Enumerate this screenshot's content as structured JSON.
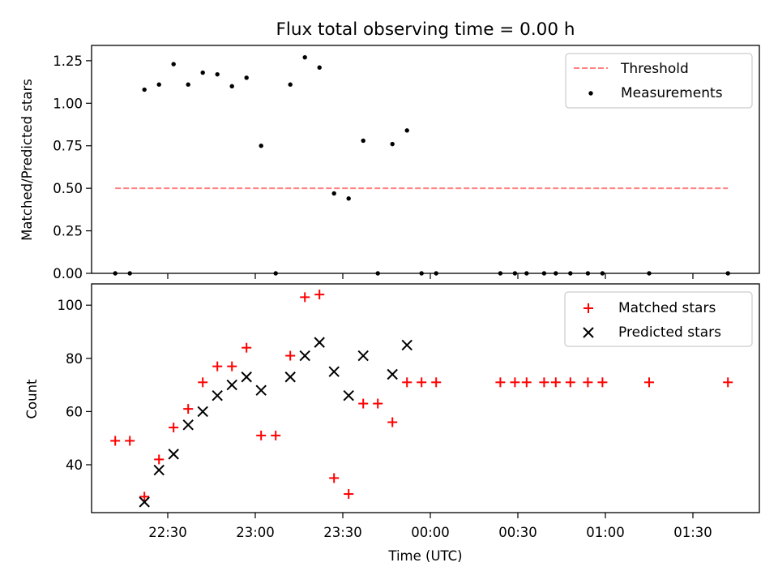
{
  "chart_data": [
    {
      "type": "scatter",
      "title": "Flux total observing time = 0.00 h",
      "xlabel": "",
      "ylabel": "Matched/Predicted stars",
      "ylim": [
        0,
        1.34
      ],
      "yticks": [
        "0.00",
        "0.25",
        "0.50",
        "0.75",
        "1.00",
        "1.25"
      ],
      "grid": false,
      "legend_position": "top-right",
      "threshold": {
        "name": "Threshold",
        "value": 0.5,
        "x_start": "22:12",
        "x_end": "01:42",
        "color": "#ff7f7f"
      },
      "series": [
        {
          "name": "Measurements",
          "color": "#000000",
          "points": [
            [
              "22:12",
              0.0
            ],
            [
              "22:17",
              0.0
            ],
            [
              "22:22",
              1.08
            ],
            [
              "22:27",
              1.11
            ],
            [
              "22:32",
              1.23
            ],
            [
              "22:37",
              1.11
            ],
            [
              "22:42",
              1.18
            ],
            [
              "22:47",
              1.17
            ],
            [
              "22:52",
              1.1
            ],
            [
              "22:57",
              1.15
            ],
            [
              "23:02",
              0.75
            ],
            [
              "23:07",
              0.0
            ],
            [
              "23:12",
              1.11
            ],
            [
              "23:17",
              1.27
            ],
            [
              "23:22",
              1.21
            ],
            [
              "23:27",
              0.47
            ],
            [
              "23:32",
              0.44
            ],
            [
              "23:37",
              0.78
            ],
            [
              "23:42",
              0.0
            ],
            [
              "23:47",
              0.76
            ],
            [
              "23:52",
              0.84
            ],
            [
              "23:57",
              0.0
            ],
            [
              "00:02",
              0.0
            ],
            [
              "00:24",
              0.0
            ],
            [
              "00:29",
              0.0
            ],
            [
              "00:33",
              0.0
            ],
            [
              "00:39",
              0.0
            ],
            [
              "00:43",
              0.0
            ],
            [
              "00:48",
              0.0
            ],
            [
              "00:54",
              0.0
            ],
            [
              "00:59",
              0.0
            ],
            [
              "01:15",
              0.0
            ],
            [
              "01:42",
              0.0
            ]
          ]
        }
      ]
    },
    {
      "type": "scatter",
      "title": "",
      "xlabel": "Time (UTC)",
      "ylabel": "Count",
      "ylim": [
        22,
        108
      ],
      "yticks": [
        "40",
        "60",
        "80",
        "100"
      ],
      "xticks": [
        "22:30",
        "23:00",
        "23:30",
        "00:00",
        "00:30",
        "01:00",
        "01:30"
      ],
      "grid": false,
      "legend_position": "top-right",
      "series": [
        {
          "name": "Matched stars",
          "marker": "plus",
          "color": "#ff0000",
          "points": [
            [
              "22:12",
              49
            ],
            [
              "22:17",
              49
            ],
            [
              "22:22",
              28
            ],
            [
              "22:27",
              42
            ],
            [
              "22:32",
              54
            ],
            [
              "22:37",
              61
            ],
            [
              "22:42",
              71
            ],
            [
              "22:47",
              77
            ],
            [
              "22:52",
              77
            ],
            [
              "22:57",
              84
            ],
            [
              "23:02",
              51
            ],
            [
              "23:07",
              51
            ],
            [
              "23:12",
              81
            ],
            [
              "23:17",
              103
            ],
            [
              "23:22",
              104
            ],
            [
              "23:27",
              35
            ],
            [
              "23:32",
              29
            ],
            [
              "23:37",
              63
            ],
            [
              "23:42",
              63
            ],
            [
              "23:47",
              56
            ],
            [
              "23:52",
              71
            ],
            [
              "23:57",
              71
            ],
            [
              "00:02",
              71
            ],
            [
              "00:24",
              71
            ],
            [
              "00:29",
              71
            ],
            [
              "00:33",
              71
            ],
            [
              "00:39",
              71
            ],
            [
              "00:43",
              71
            ],
            [
              "00:48",
              71
            ],
            [
              "00:54",
              71
            ],
            [
              "00:59",
              71
            ],
            [
              "01:15",
              71
            ],
            [
              "01:42",
              71
            ]
          ]
        },
        {
          "name": "Predicted stars",
          "marker": "x",
          "color": "#000000",
          "points": [
            [
              "22:22",
              26
            ],
            [
              "22:27",
              38
            ],
            [
              "22:32",
              44
            ],
            [
              "22:37",
              55
            ],
            [
              "22:42",
              60
            ],
            [
              "22:47",
              66
            ],
            [
              "22:52",
              70
            ],
            [
              "22:57",
              73
            ],
            [
              "23:02",
              68
            ],
            [
              "23:12",
              73
            ],
            [
              "23:17",
              81
            ],
            [
              "23:22",
              86
            ],
            [
              "23:27",
              75
            ],
            [
              "23:32",
              66
            ],
            [
              "23:37",
              81
            ],
            [
              "23:47",
              74
            ],
            [
              "23:52",
              85
            ]
          ]
        }
      ]
    }
  ]
}
